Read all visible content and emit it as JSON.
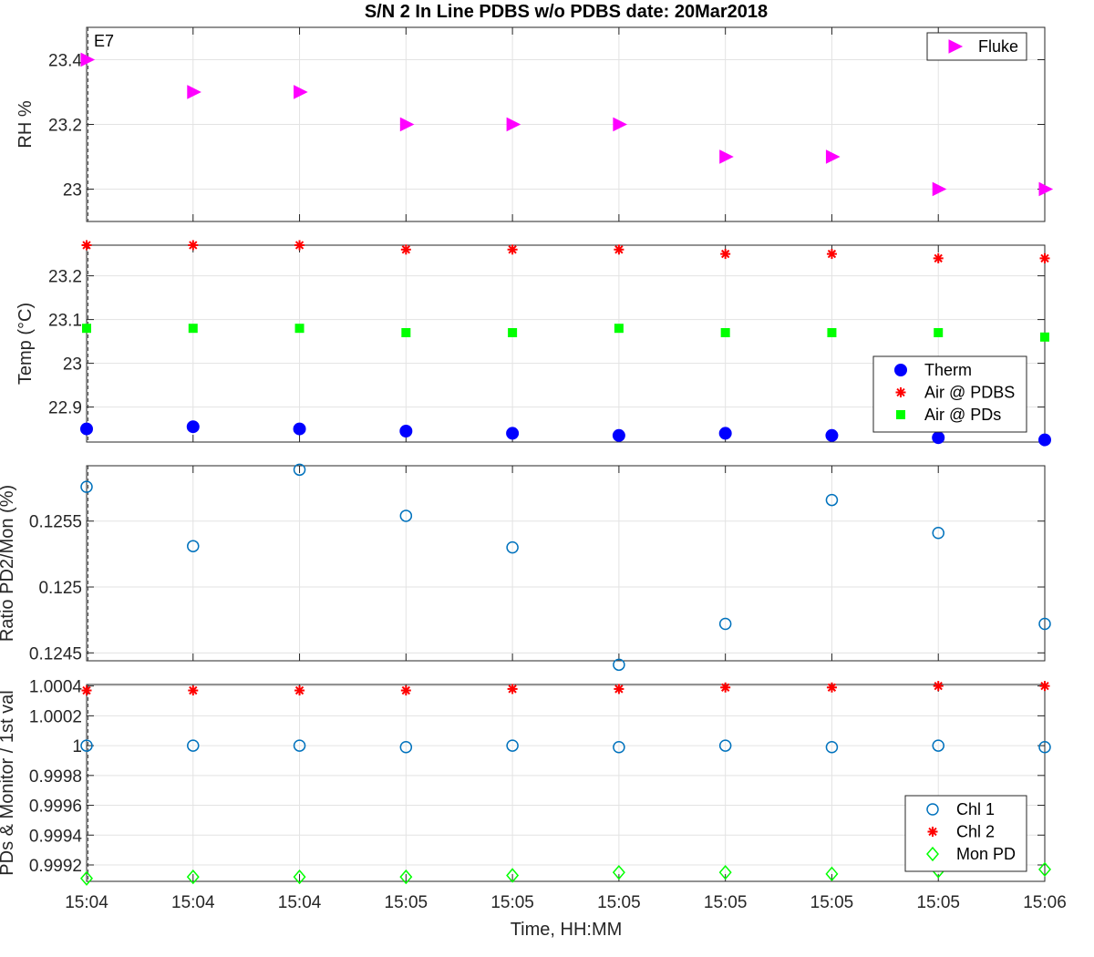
{
  "figure": {
    "title": "S/N 2 In Line PDBS w/o PDBS date: 20Mar2018",
    "xlabel": "Time, HH:MM",
    "xticks": [
      "15:04",
      "15:04",
      "15:04",
      "15:05",
      "15:05",
      "15:05",
      "15:05",
      "15:05",
      "15:05",
      "15:06"
    ]
  },
  "chart_data": [
    {
      "type": "scatter",
      "panel": "rh",
      "annotation": "E7",
      "ylabel": "RH %",
      "ylim": [
        22.9,
        23.5
      ],
      "yticks": [
        23,
        23.2,
        23.4
      ],
      "ytick_labels": [
        "23",
        "23.2",
        "23.4"
      ],
      "grid": true,
      "legend": "top-right",
      "series": [
        {
          "name": "Fluke",
          "marker": "triangle-right",
          "color": "#ff00ff",
          "values": [
            23.4,
            23.3,
            23.3,
            23.2,
            23.2,
            23.2,
            23.1,
            23.1,
            23.0,
            23.0
          ]
        }
      ]
    },
    {
      "type": "scatter",
      "panel": "temp",
      "ylabel": "Temp (°C)",
      "ylim": [
        22.82,
        23.27
      ],
      "yticks": [
        22.9,
        23.0,
        23.1,
        23.2
      ],
      "ytick_labels": [
        "22.9",
        "23",
        "23.1",
        "23.2"
      ],
      "grid": true,
      "legend": "lower-right",
      "series": [
        {
          "name": "Therm",
          "marker": "circle-filled",
          "color": "#0000ff",
          "values": [
            22.85,
            22.855,
            22.85,
            22.845,
            22.84,
            22.835,
            22.84,
            22.835,
            22.83,
            22.825
          ]
        },
        {
          "name": "Air @ PDBS",
          "marker": "asterisk",
          "color": "#ff0000",
          "values": [
            23.27,
            23.27,
            23.27,
            23.26,
            23.26,
            23.26,
            23.25,
            23.25,
            23.24,
            23.24
          ]
        },
        {
          "name": "Air @ PDs",
          "marker": "square-filled",
          "color": "#00ff00",
          "values": [
            23.08,
            23.08,
            23.08,
            23.07,
            23.07,
            23.08,
            23.07,
            23.07,
            23.07,
            23.06
          ]
        }
      ]
    },
    {
      "type": "scatter",
      "panel": "ratio",
      "ylabel": "Ratio PD2/Mon (%)",
      "ylim": [
        0.12444,
        0.12592
      ],
      "yticks": [
        0.1245,
        0.125,
        0.1255
      ],
      "ytick_labels": [
        "0.1245",
        "0.125",
        "0.1255"
      ],
      "grid": true,
      "series": [
        {
          "name": "",
          "marker": "circle-open",
          "color": "#0072bd",
          "values": [
            0.12576,
            0.12531,
            0.12589,
            0.12554,
            0.1253,
            0.12441,
            0.12472,
            0.12566,
            0.12541,
            0.12472
          ]
        }
      ]
    },
    {
      "type": "scatter",
      "panel": "norm",
      "ylabel": "PDs & Monitor / 1st val",
      "ylim": [
        0.99909,
        1.00041
      ],
      "yticks": [
        0.9992,
        0.9994,
        0.9996,
        0.9998,
        1.0,
        1.0002,
        1.0004
      ],
      "ytick_labels": [
        "0.9992",
        "0.9994",
        "0.9996",
        "0.9998",
        "1",
        "1.0002",
        "1.0004"
      ],
      "grid": true,
      "legend": "lower-right",
      "series": [
        {
          "name": "Chl 1",
          "marker": "circle-open",
          "color": "#0072bd",
          "values": [
            1.0,
            1.0,
            1.0,
            0.99999,
            1.0,
            0.99999,
            1.0,
            0.99999,
            1.0,
            0.99999
          ]
        },
        {
          "name": "Chl 2",
          "marker": "asterisk",
          "color": "#ff0000",
          "values": [
            1.00037,
            1.00037,
            1.00037,
            1.00037,
            1.00038,
            1.00038,
            1.00039,
            1.00039,
            1.0004,
            1.0004
          ]
        },
        {
          "name": "Mon PD",
          "marker": "diamond-open",
          "color": "#00ff00",
          "values": [
            0.99911,
            0.99912,
            0.99912,
            0.99912,
            0.99913,
            0.99915,
            0.99915,
            0.99914,
            0.99916,
            0.99917
          ]
        }
      ]
    }
  ]
}
